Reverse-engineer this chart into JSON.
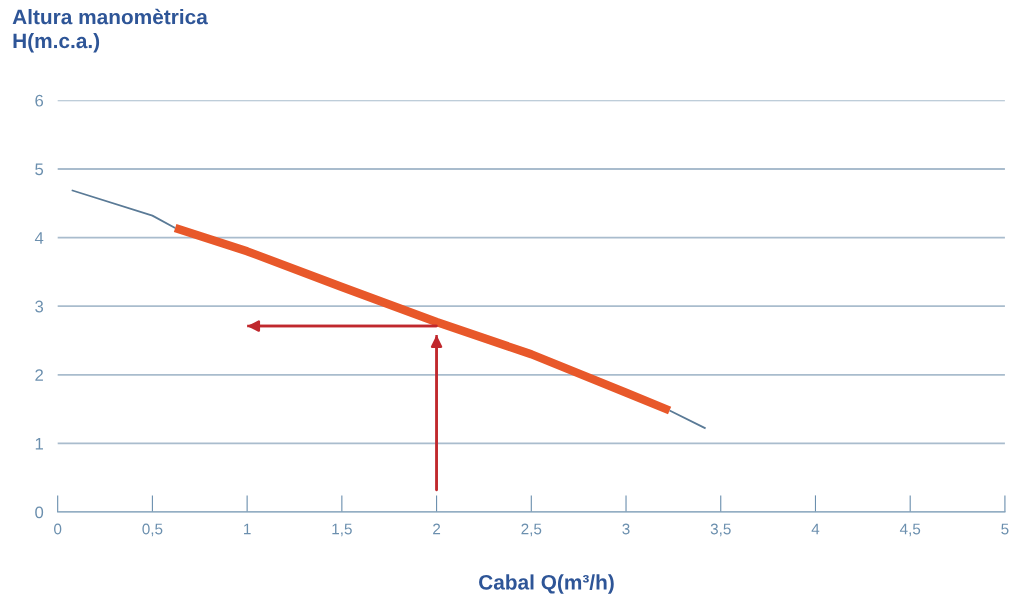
{
  "chart_data": {
    "type": "line",
    "ylabel": "Altura manomètrica\nH(m.c.a.)",
    "xlabel": "Cabal Q(m³/h)",
    "series": [
      {
        "color": "#5a7a96",
        "x": [
          0.074,
          0.5,
          0.62,
          2.0,
          3.23,
          3.42
        ],
        "values": [
          4.69,
          4.32,
          4.14,
          null,
          1.48,
          1.22
        ]
      },
      {
        "color": "#e8582a",
        "x": [
          0.62,
          1.0,
          1.5,
          2.0,
          2.5,
          3.0,
          3.23
        ],
        "values": [
          4.14,
          3.8,
          3.28,
          2.77,
          2.3,
          1.74,
          1.48
        ]
      },
      {
        "color": "#c0282d",
        "x": [
          2.0,
          2.0
        ],
        "values": [
          0.32,
          2.58
        ]
      },
      {
        "color": "#c0282d",
        "x": [
          2.0,
          1.0
        ],
        "values": [
          2.71,
          2.71
        ]
      }
    ],
    "xlim": [
      0,
      5
    ],
    "ylim": [
      0,
      6
    ],
    "xticks": [
      0,
      {
        "value": 0.5,
        "label": "0,5"
      },
      1,
      {
        "value": 1.5,
        "label": "1,5"
      },
      2,
      {
        "value": 2.5,
        "label": "2,5"
      },
      3,
      {
        "value": 3.5,
        "label": "3,5"
      },
      4,
      {
        "value": 4.5,
        "label": "4,5"
      },
      5
    ],
    "yticks": [
      0,
      1,
      2,
      3,
      4,
      5,
      6
    ],
    "grid": "y"
  }
}
